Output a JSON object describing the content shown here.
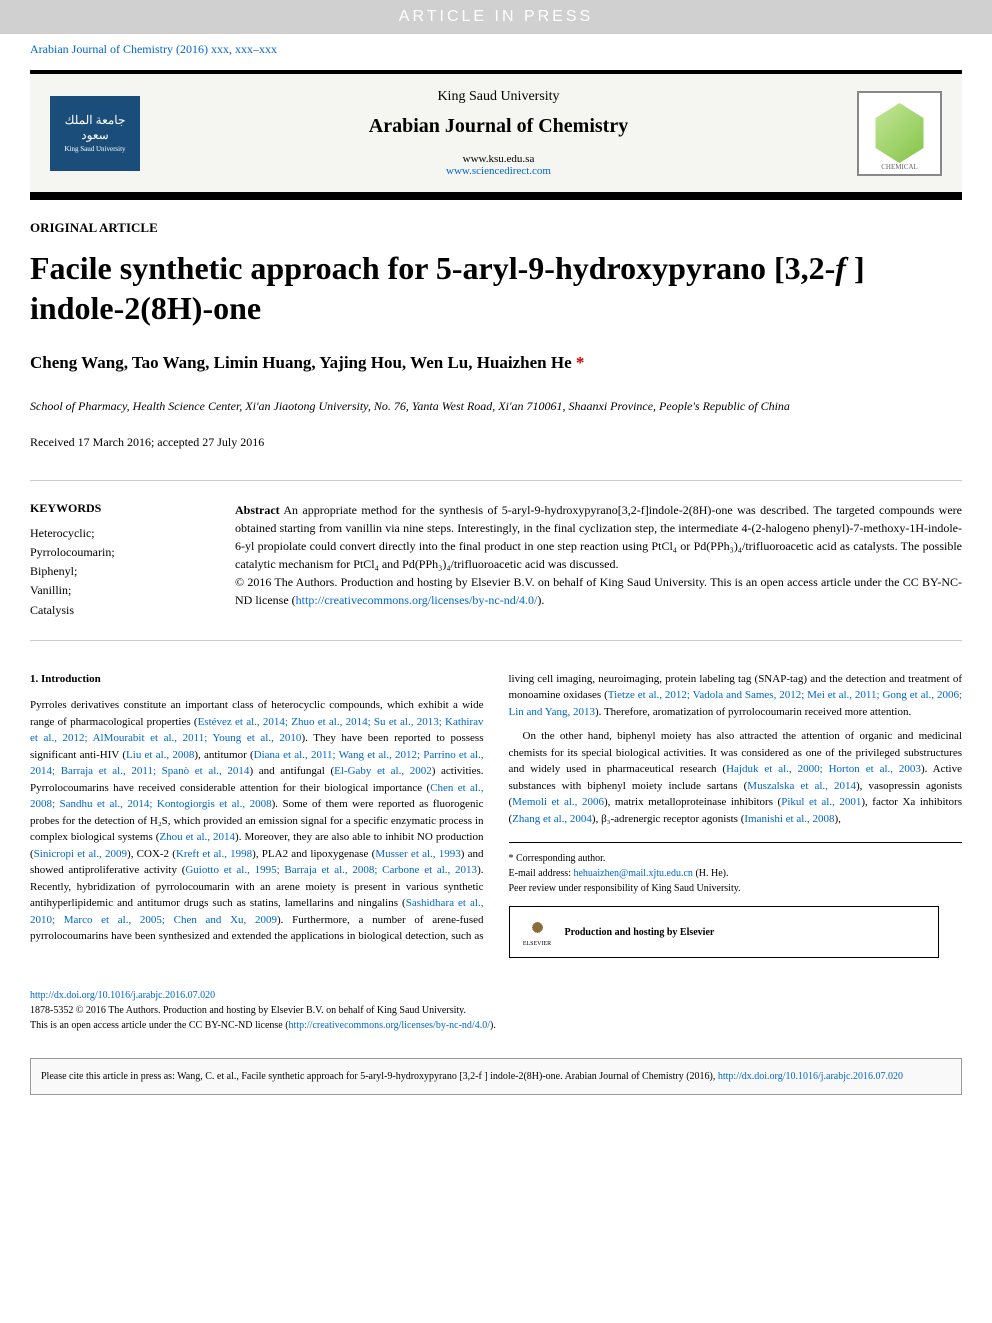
{
  "banner": "ARTICLE IN PRESS",
  "journalRef": "Arabian Journal of Chemistry (2016) xxx, xxx–xxx",
  "header": {
    "ksuArabic": "جامعة الملك سعود",
    "ksuEng": "King Saud University",
    "university": "King Saud University",
    "journalName": "Arabian Journal of Chemistry",
    "url1": "www.ksu.edu.sa",
    "url2": "www.sciencedirect.com",
    "chemLabel": "CHEMICAL"
  },
  "articleType": "ORIGINAL ARTICLE",
  "titleParts": {
    "p1": "Facile synthetic approach for 5-aryl-9-hydroxypyrano [3,2-",
    "p2": "f",
    "p3": " ] indole-2(8H)-one"
  },
  "authors": "Cheng Wang, Tao Wang, Limin Huang, Yajing Hou, Wen Lu, Huaizhen He",
  "authorStar": " *",
  "affiliation": "School of Pharmacy, Health Science Center, Xi'an Jiaotong University, No. 76, Yanta West Road, Xi'an 710061, Shaanxi Province, People's Republic of China",
  "dates": "Received 17 March 2016; accepted 27 July 2016",
  "keywords": {
    "title": "KEYWORDS",
    "items": "Heterocyclic;\nPyrrolocoumarin;\nBiphenyl;\nVanillin;\nCatalysis"
  },
  "abstract": {
    "label": "Abstract",
    "text": "   An appropriate method for the synthesis of 5-aryl-9-hydroxypyrano[3,2-f]indole-2(8H)-one was described. The targeted compounds were obtained starting from vanillin via nine steps. Interestingly, in the final cyclization step, the intermediate 4-(2-halogeno phenyl)-7-methoxy-1H-indole-6-yl propiolate could convert directly into the final product in one step reaction using PtCl₄ or Pd(PPh₃)₄/trifluoroacetic acid as catalysts. The possible catalytic mechanism for PtCl₄ and Pd(PPh₃)₄/trifluoroacetic acid was discussed.",
    "copyright": "© 2016 The Authors. Production and hosting by Elsevier B.V. on behalf of King Saud University. This is an open access article under the CC BY-NC-ND license (",
    "ccLink": "http://creativecommons.org/licenses/by-nc-nd/4.0/",
    "close": ")."
  },
  "intro": {
    "title": "1. Introduction",
    "p1a": "Pyrroles derivatives constitute an important class of heterocyclic compounds, which exhibit a wide range of pharmacological properties (",
    "c1": "Estévez et al., 2014; Zhuo et al., 2014; Su et al., 2013; Kathirav et al., 2012; AlMourabit et al., 2011; Young et al., 2010",
    "p1b": "). They have been reported to possess significant anti-HIV (",
    "c2": "Liu et al., 2008",
    "p1c": "), antitumor (",
    "c3": "Diana et al., 2011; Wang et al., 2012; Parrino et al., 2014; Barraja et al., 2011; Spanò et al., 2014",
    "p1d": ") and antifungal (",
    "c4": "El-Gaby et al., 2002",
    "p1e": ") activities. Pyrrolocoumarins have received considerable attention for their biological importance (",
    "c5": "Chen et al., 2008; Sandhu et al., 2014; Kontogiorgis et al., 2008",
    "p1f": "). Some of them were reported as fluorogenic probes for the detection of H₂S, which provided an emission signal for a specific enzymatic process in complex biological systems (",
    "c6": "Zhou et al., 2014",
    "p1g": "). Moreover, they are also able to inhibit NO production (",
    "c7": "Sinicropi et al., 2009",
    "p1h": "), COX-2 (",
    "c8": "Kreft et al., 1998",
    "p1i": "), PLA2 and lipoxygenase (",
    "c9": "Musser et al., 1993",
    "p1j": ") and showed antiproliferative activity (",
    "c10": "Guiotto et al., 1995; Barraja et al., 2008; Carbone et al., 2013",
    "p1k": "). Recently, hybridization of pyrrolocoumarin with an arene moiety is present in various synthetic antihyperlipidemic and antitumor drugs such as statins, lamellarins and ningalins (",
    "c11": "Sashidhara et al., 2010; Marco et al., 2005; Chen and Xu, 2009",
    "p1l": "). Furthermore, a number of arene-fused pyrrolocoumarins have been synthesized and extended the applications in biological detection, such as living cell imaging, neuroimaging, protein labeling tag (SNAP-tag) and the detection and treatment of monoamine oxidases (",
    "c12": "Tietze et al., 2012; Vadola and Sames, 2012; Mei et al., 2011; Gong et al., 2006; Lin and Yang, 2013",
    "p1m": "). Therefore, aromatization of pyrrolocoumarin received more attention.",
    "p2a": "On the other hand, biphenyl moiety has also attracted the attention of organic and medicinal chemists for its special biological activities. It was considered as one of the privileged substructures and widely used in pharmaceutical research (",
    "c13": "Hajduk et al., 2000; Horton et al., 2003",
    "p2b": "). Active substances with biphenyl moiety include sartans (",
    "c14": "Muszalska et al., 2014",
    "p2c": "), vasopressin agonists (",
    "c15": "Memoli et al., 2006",
    "p2d": "), matrix metalloproteinase inhibitors (",
    "c16": "Pikul et al., 2001",
    "p2e": "), factor Xa inhibitors (",
    "c17": "Zhang et al., 2004",
    "p2f": "), β₃-adrenergic receptor agonists (",
    "c18": "Imanishi et al., 2008",
    "p2g": "),"
  },
  "footnotes": {
    "corr": "* Corresponding author.",
    "emailLabel": "E-mail address: ",
    "email": "hehuaizhen@mail.xjtu.edu.cn",
    "emailName": " (H. He).",
    "peer": "Peer review under responsibility of King Saud University."
  },
  "hosting": {
    "elsevier": "ELSEVIER",
    "text": "Production and hosting by Elsevier"
  },
  "bottom": {
    "doi": "http://dx.doi.org/10.1016/j.arabjc.2016.07.020",
    "issn": "1878-5352 © 2016 The Authors. Production and hosting by Elsevier B.V. on behalf of King Saud University.",
    "oa": "This is an open access article under the CC BY-NC-ND license (",
    "ccLink": "http://creativecommons.org/licenses/by-nc-nd/4.0/",
    "close": ")."
  },
  "citeBox": {
    "text": "Please cite this article in press as: Wang, C. et al., Facile synthetic approach for 5-aryl-9-hydroxypyrano [3,2-f ] indole-2(8H)-one. Arabian Journal of Chemistry (2016), ",
    "doi": "http://dx.doi.org/10.1016/j.arabjc.2016.07.020"
  }
}
